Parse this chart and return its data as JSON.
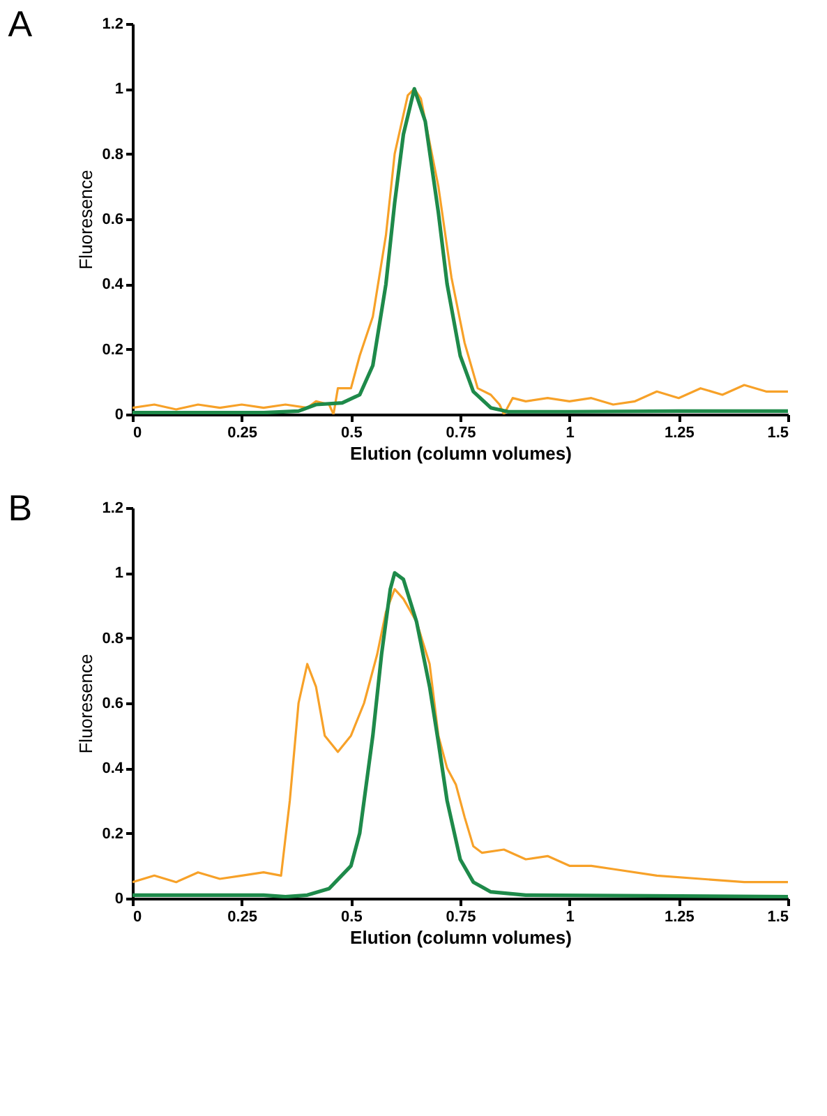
{
  "chart_data": [
    {
      "type": "line",
      "title": "A",
      "xlabel": "Elution (column volumes)",
      "ylabel": "Fluoresence",
      "xlim": [
        0,
        1.5
      ],
      "ylim": [
        0,
        1.2
      ],
      "xticks": [
        0,
        0.25,
        0.5,
        0.75,
        1,
        1.25,
        1.5
      ],
      "yticks": [
        0,
        0.2,
        0.4,
        0.6,
        0.8,
        1,
        1.2
      ],
      "grid": false,
      "marker": "none",
      "line_style": "solid",
      "series": [
        {
          "color": "#f7a128",
          "x": [
            0,
            0.05,
            0.1,
            0.15,
            0.2,
            0.25,
            0.3,
            0.35,
            0.4,
            0.42,
            0.45,
            0.46,
            0.47,
            0.5,
            0.52,
            0.55,
            0.58,
            0.6,
            0.63,
            0.645,
            0.66,
            0.7,
            0.73,
            0.76,
            0.79,
            0.82,
            0.84,
            0.85,
            0.87,
            0.9,
            0.95,
            1.0,
            1.05,
            1.1,
            1.15,
            1.2,
            1.25,
            1.3,
            1.35,
            1.4,
            1.45,
            1.5
          ],
          "values": [
            0.02,
            0.03,
            0.015,
            0.03,
            0.02,
            0.03,
            0.02,
            0.03,
            0.02,
            0.04,
            0.03,
            0.0,
            0.08,
            0.08,
            0.18,
            0.3,
            0.55,
            0.8,
            0.98,
            1.0,
            0.97,
            0.7,
            0.42,
            0.22,
            0.08,
            0.06,
            0.03,
            0.0,
            0.05,
            0.04,
            0.05,
            0.04,
            0.05,
            0.03,
            0.04,
            0.07,
            0.05,
            0.08,
            0.06,
            0.09,
            0.07,
            0.07
          ]
        },
        {
          "color": "#1e8a4a",
          "x": [
            0,
            0.3,
            0.38,
            0.42,
            0.48,
            0.52,
            0.55,
            0.58,
            0.6,
            0.62,
            0.645,
            0.67,
            0.7,
            0.72,
            0.75,
            0.78,
            0.82,
            0.86,
            1.0,
            1.25,
            1.5
          ],
          "values": [
            0.005,
            0.005,
            0.01,
            0.03,
            0.035,
            0.06,
            0.15,
            0.4,
            0.65,
            0.86,
            1.0,
            0.9,
            0.62,
            0.4,
            0.18,
            0.07,
            0.02,
            0.008,
            0.008,
            0.01,
            0.01
          ]
        }
      ]
    },
    {
      "type": "line",
      "title": "B",
      "xlabel": "Elution (column volumes)",
      "ylabel": "Fluoresence",
      "xlim": [
        0,
        1.5
      ],
      "ylim": [
        0,
        1.2
      ],
      "xticks": [
        0,
        0.25,
        0.5,
        0.75,
        1,
        1.25,
        1.5
      ],
      "yticks": [
        0,
        0.2,
        0.4,
        0.6,
        0.8,
        1,
        1.2
      ],
      "grid": false,
      "marker": "none",
      "line_style": "solid",
      "series": [
        {
          "color": "#f7a128",
          "x": [
            0,
            0.05,
            0.1,
            0.15,
            0.2,
            0.25,
            0.3,
            0.34,
            0.36,
            0.38,
            0.4,
            0.42,
            0.44,
            0.47,
            0.5,
            0.53,
            0.56,
            0.58,
            0.6,
            0.62,
            0.65,
            0.68,
            0.7,
            0.72,
            0.74,
            0.76,
            0.78,
            0.8,
            0.85,
            0.9,
            0.95,
            1.0,
            1.05,
            1.1,
            1.2,
            1.3,
            1.4,
            1.5
          ],
          "values": [
            0.05,
            0.07,
            0.05,
            0.08,
            0.06,
            0.07,
            0.08,
            0.07,
            0.3,
            0.6,
            0.72,
            0.65,
            0.5,
            0.45,
            0.5,
            0.6,
            0.75,
            0.88,
            0.95,
            0.92,
            0.85,
            0.72,
            0.5,
            0.4,
            0.35,
            0.25,
            0.16,
            0.14,
            0.15,
            0.12,
            0.13,
            0.1,
            0.1,
            0.09,
            0.07,
            0.06,
            0.05,
            0.05
          ]
        },
        {
          "color": "#1e8a4a",
          "x": [
            0,
            0.3,
            0.35,
            0.4,
            0.45,
            0.5,
            0.52,
            0.55,
            0.57,
            0.59,
            0.6,
            0.62,
            0.65,
            0.68,
            0.7,
            0.72,
            0.75,
            0.78,
            0.82,
            0.9,
            1.5
          ],
          "values": [
            0.01,
            0.01,
            0.005,
            0.01,
            0.03,
            0.1,
            0.2,
            0.5,
            0.75,
            0.95,
            1.0,
            0.98,
            0.85,
            0.65,
            0.48,
            0.3,
            0.12,
            0.05,
            0.02,
            0.01,
            0.005
          ]
        }
      ]
    }
  ]
}
